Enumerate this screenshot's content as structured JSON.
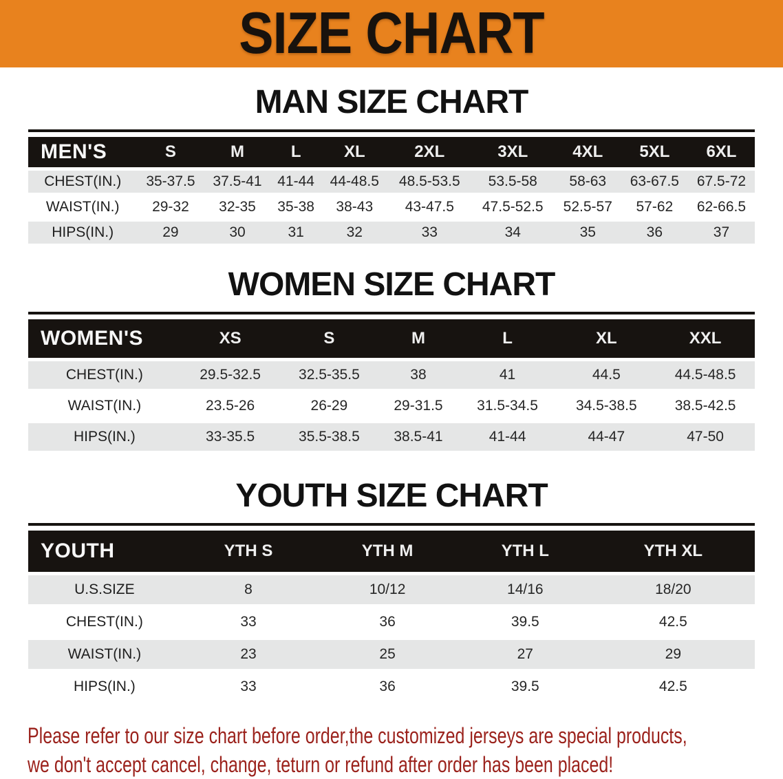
{
  "banner": {
    "title": "SIZE CHART",
    "bg_color": "#E8821E",
    "text_color": "#18120D"
  },
  "sections": [
    {
      "heading": "MAN SIZE CHART",
      "table": {
        "name": "mens",
        "label": "MEN'S",
        "sizes": [
          "S",
          "M",
          "L",
          "XL",
          "2XL",
          "3XL",
          "4XL",
          "5XL",
          "6XL"
        ],
        "rows": [
          {
            "label": "CHEST(IN.)",
            "values": [
              "35-37.5",
              "37.5-41",
              "41-44",
              "44-48.5",
              "48.5-53.5",
              "53.5-58",
              "58-63",
              "63-67.5",
              "67.5-72"
            ]
          },
          {
            "label": "WAIST(IN.)",
            "values": [
              "29-32",
              "32-35",
              "35-38",
              "38-43",
              "43-47.5",
              "47.5-52.5",
              "52.5-57",
              "57-62",
              "62-66.5"
            ]
          },
          {
            "label": "HIPS(IN.)",
            "values": [
              "29",
              "30",
              "31",
              "32",
              "33",
              "34",
              "35",
              "36",
              "37"
            ]
          }
        ]
      }
    },
    {
      "heading": "WOMEN SIZE CHART",
      "table": {
        "name": "womens",
        "label": "WOMEN'S",
        "sizes": [
          "XS",
          "S",
          "M",
          "L",
          "XL",
          "XXL"
        ],
        "rows": [
          {
            "label": "CHEST(IN.)",
            "values": [
              "29.5-32.5",
              "32.5-35.5",
              "38",
              "41",
              "44.5",
              "44.5-48.5"
            ]
          },
          {
            "label": "WAIST(IN.)",
            "values": [
              "23.5-26",
              "26-29",
              "29-31.5",
              "31.5-34.5",
              "34.5-38.5",
              "38.5-42.5"
            ]
          },
          {
            "label": "HIPS(IN.)",
            "values": [
              "33-35.5",
              "35.5-38.5",
              "38.5-41",
              "41-44",
              "44-47",
              "47-50"
            ]
          }
        ]
      }
    },
    {
      "heading": "YOUTH SIZE CHART",
      "table": {
        "name": "youth",
        "label": "YOUTH",
        "sizes": [
          "YTH S",
          "YTH M",
          "YTH L",
          "YTH XL"
        ],
        "rows": [
          {
            "label": "U.S.SIZE",
            "values": [
              "8",
              "10/12",
              "14/16",
              "18/20"
            ]
          },
          {
            "label": "CHEST(IN.)",
            "values": [
              "33",
              "36",
              "39.5",
              "42.5"
            ]
          },
          {
            "label": "WAIST(IN.)",
            "values": [
              "23",
              "25",
              "27",
              "29"
            ]
          },
          {
            "label": "HIPS(IN.)",
            "values": [
              "33",
              "36",
              "39.5",
              "42.5"
            ]
          }
        ]
      }
    }
  ],
  "disclaimer": {
    "lines": [
      "Please refer to our size chart before order,the customized jerseys are special products,",
      "we don't accept cancel, change, teturn or refund after order has been placed!"
    ],
    "color": "#9B221C"
  },
  "colors": {
    "banner_orange": "#E8821E",
    "table_header_black": "#171310",
    "row_stripe_gray": "#E5E6E6",
    "row_white": "#ffffff",
    "disclaimer_red": "#9B221C"
  }
}
